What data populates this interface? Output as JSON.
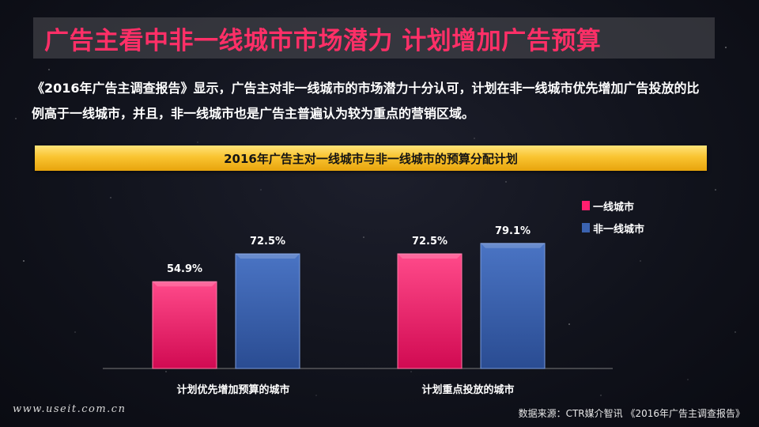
{
  "title": "广告主看中非一线城市市场潜力 计划增加广告预算",
  "intro": "《2016年广告主调查报告》显示，广告主对非一线城市的市场潜力十分认可，计划在非一线城市优先增加广告投放的比例高于一线城市，并且，非一线城市也是广告主普遍认为较为重点的营销区域。",
  "chart_title": "2016年广告主对一线城市与非一线城市的预算分配计划",
  "watermark": "www.useit.com.cn",
  "source": "数据来源：CTR媒介智讯 《2016年广告主调查报告》",
  "colors": {
    "tier1": "#ff1f6e",
    "non_tier1": "#3b63b0",
    "title": "#ff2f67",
    "header_bar": "#f9c431"
  },
  "chart_data": {
    "type": "bar",
    "title": "2016年广告主对一线城市与非一线城市的预算分配计划",
    "categories": [
      "计划优先增加预算的城市",
      "计划重点投放的城市"
    ],
    "series": [
      {
        "name": "一线城市",
        "values": [
          54.9,
          72.5
        ],
        "labels": [
          "54.9%",
          "72.5%"
        ]
      },
      {
        "name": "非一线城市",
        "values": [
          72.5,
          79.1
        ],
        "labels": [
          "72.5%",
          "79.1%"
        ]
      }
    ],
    "xlabel": "",
    "ylabel": "",
    "grid": false,
    "legend_position": "top-right"
  }
}
